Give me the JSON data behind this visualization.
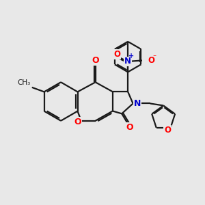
{
  "bg_color": "#e8e8e8",
  "bond_color": "#1a1a1a",
  "bond_width": 1.6,
  "atom_colors": {
    "O": "#ff0000",
    "N": "#0000cc"
  },
  "fig_size": [
    3.0,
    3.0
  ],
  "dpi": 100,
  "xlim": [
    0,
    10
  ],
  "ylim": [
    0,
    10
  ]
}
